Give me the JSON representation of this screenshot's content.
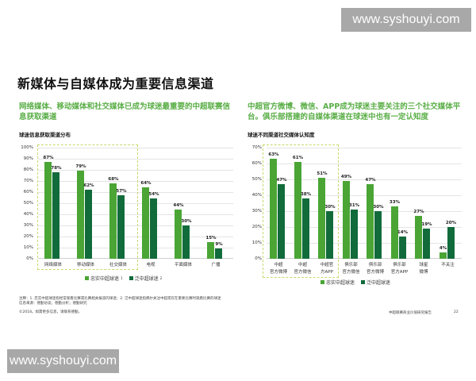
{
  "watermark": {
    "text": "www.syshouyi.com"
  },
  "page": {
    "title": "新媒体与自媒体成为重要信息渠道"
  },
  "left_panel": {
    "headline": "网络媒体、移动媒体和社交媒体已成为球迷最重要的中超联赛信息获取渠道",
    "chart_title": "球迷信息获取渠道分布"
  },
  "right_panel": {
    "headline": "中超官方微博、微信、APP成为球迷主要关注的三个社交媒体平台。俱乐部搭建的自媒体渠道在球迷中也有一定认知度",
    "chart_title": "球迷不同渠道社交媒体认知度"
  },
  "legend": {
    "series_a": "忠实中超球迷",
    "series_a_sup": "1",
    "series_b": "泛中超球迷",
    "series_b_sup": "2",
    "color_a": "#4aa535",
    "color_b": "#116b3b"
  },
  "footnotes": {
    "line1": "注释：1. 忠实中超球迷指经常观看比赛或比赛相关报道的球迷；2. 泛中超球迷指偶尔关注中超或仅在重要比赛时观看比赛的球迷",
    "line2": "信息来源：德勤访谈；德勤分析；德勤研究",
    "line3": "©2018。如需更多信息，请联系德勤。",
    "source": "中超联赛商业价值研究报告",
    "page_number": "22"
  },
  "chart_data": [
    {
      "type": "bar",
      "title": "球迷信息获取渠道分布",
      "categories": [
        "网络媒体",
        "移动媒体",
        "社交媒体",
        "电视",
        "平面媒体",
        "广播"
      ],
      "series": [
        {
          "name": "忠实中超球迷",
          "values": [
            87,
            79,
            68,
            64,
            44,
            15
          ]
        },
        {
          "name": "泛中超球迷",
          "values": [
            78,
            62,
            57,
            54,
            30,
            9
          ]
        }
      ],
      "value_labels_a": [
        "87%",
        "79%",
        "68%",
        "64%",
        "44%",
        "15%"
      ],
      "value_labels_b": [
        "78%",
        "62%",
        "57%",
        "54%",
        "30%",
        "9%"
      ],
      "yticks": [
        "100%",
        "90%",
        "80%",
        "70%",
        "60%",
        "50%",
        "40%",
        "30%",
        "20%",
        "10%",
        "0%"
      ],
      "ylim": [
        0,
        100
      ],
      "xlabel": "",
      "ylabel": "",
      "grid": true,
      "legend_position": "bottom",
      "highlighted_categories": [
        "网络媒体",
        "移动媒体",
        "社交媒体"
      ]
    },
    {
      "type": "bar",
      "title": "球迷不同渠道社交媒体认知度",
      "categories": [
        "中超官方微博",
        "中超官方微信",
        "中超官方APP",
        "俱乐部官方微信",
        "俱乐部官方微博",
        "俱乐部官方APP",
        "球星微博",
        "不关注"
      ],
      "category_lines": [
        [
          "中超",
          "官方微博"
        ],
        [
          "中超",
          "官方微信"
        ],
        [
          "中超官",
          "方APP"
        ],
        [
          "俱乐部",
          "官方微信"
        ],
        [
          "俱乐部",
          "官方微博"
        ],
        [
          "俱乐部",
          "官方APP"
        ],
        [
          "球星",
          "微博"
        ],
        [
          "不关注",
          ""
        ]
      ],
      "series": [
        {
          "name": "忠实中超球迷",
          "values": [
            63,
            61,
            51,
            49,
            47,
            33,
            27,
            4
          ]
        },
        {
          "name": "泛中超球迷",
          "values": [
            47,
            38,
            30,
            31,
            30,
            14,
            19,
            20
          ]
        }
      ],
      "value_labels_a": [
        "63%",
        "61%",
        "51%",
        "49%",
        "47%",
        "33%",
        "27%",
        "4%"
      ],
      "value_labels_b": [
        "47%",
        "38%",
        "30%",
        "31%",
        "30%",
        "14%",
        "19%",
        "20%"
      ],
      "yticks": [
        "70%",
        "60%",
        "50%",
        "40%",
        "30%",
        "20%",
        "10%",
        "0%"
      ],
      "ylim": [
        0,
        70
      ],
      "xlabel": "",
      "ylabel": "",
      "grid": true,
      "legend_position": "bottom",
      "highlighted_categories": [
        "中超官方微博",
        "中超官方微信",
        "中超官方APP"
      ]
    }
  ]
}
